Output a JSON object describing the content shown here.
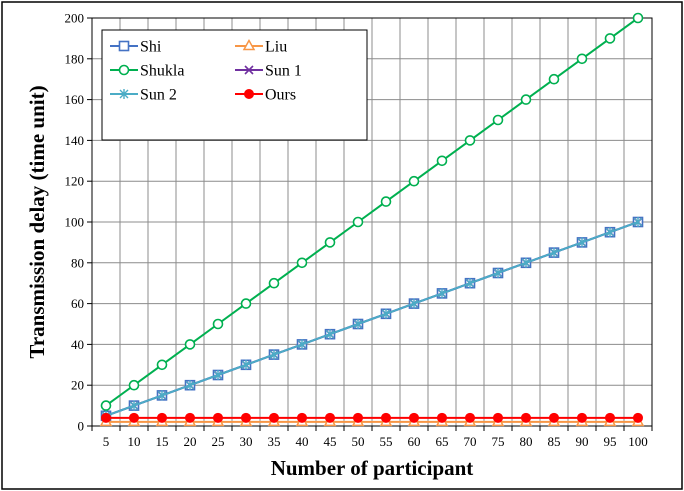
{
  "chart_data": {
    "type": "line",
    "title": "",
    "xlabel": "Number of participant",
    "ylabel": "Transmission delay (time unit)",
    "ylim": [
      0,
      200
    ],
    "yticks": [
      0,
      20,
      40,
      60,
      80,
      100,
      120,
      140,
      160,
      180,
      200
    ],
    "grid": true,
    "legend_position": "top-left",
    "categories": [
      5,
      10,
      15,
      20,
      25,
      30,
      35,
      40,
      45,
      50,
      55,
      60,
      65,
      70,
      75,
      80,
      85,
      90,
      95,
      100
    ],
    "series": [
      {
        "name": "Shi",
        "color": "#4472c4",
        "marker": "square",
        "values": [
          5,
          10,
          15,
          20,
          25,
          30,
          35,
          40,
          45,
          50,
          55,
          60,
          65,
          70,
          75,
          80,
          85,
          90,
          95,
          100
        ]
      },
      {
        "name": "Liu",
        "color": "#f79646",
        "marker": "triangle",
        "values": [
          2,
          2,
          2,
          2,
          2,
          2,
          2,
          2,
          2,
          2,
          2,
          2,
          2,
          2,
          2,
          2,
          2,
          2,
          2,
          2
        ]
      },
      {
        "name": "Shukla",
        "color": "#00b050",
        "marker": "circle-open",
        "values": [
          10,
          20,
          30,
          40,
          50,
          60,
          70,
          80,
          90,
          100,
          110,
          120,
          130,
          140,
          150,
          160,
          170,
          180,
          190,
          200
        ]
      },
      {
        "name": "Sun 1",
        "color": "#7030a0",
        "marker": "x",
        "values": [
          5,
          10,
          15,
          20,
          25,
          30,
          35,
          40,
          45,
          50,
          55,
          60,
          65,
          70,
          75,
          80,
          85,
          90,
          95,
          100
        ]
      },
      {
        "name": "Sun 2",
        "color": "#4bacc6",
        "marker": "star",
        "values": [
          5,
          10,
          15,
          20,
          25,
          30,
          35,
          40,
          45,
          50,
          55,
          60,
          65,
          70,
          75,
          80,
          85,
          90,
          95,
          100
        ]
      },
      {
        "name": "Ours",
        "color": "#ff0000",
        "marker": "circle-filled",
        "values": [
          4,
          4,
          4,
          4,
          4,
          4,
          4,
          4,
          4,
          4,
          4,
          4,
          4,
          4,
          4,
          4,
          4,
          4,
          4,
          4
        ]
      }
    ]
  }
}
